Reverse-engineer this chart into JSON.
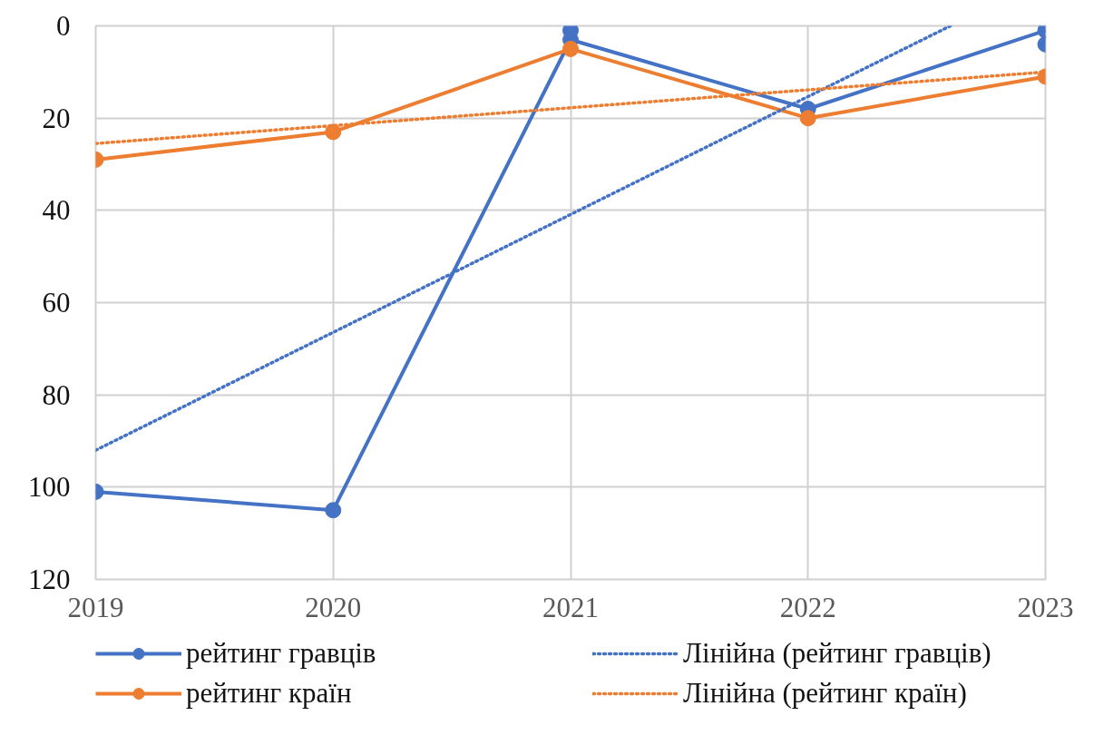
{
  "chart_data": {
    "type": "line",
    "x": [
      2019,
      2020,
      2021,
      2022,
      2023
    ],
    "xlim": [
      2019,
      2023
    ],
    "xticks": [
      2019,
      2020,
      2021,
      2022,
      2023
    ],
    "ylim": [
      120,
      0
    ],
    "yticks": [
      0,
      20,
      40,
      60,
      80,
      100,
      120
    ],
    "grid": true,
    "legend": "bottom",
    "marker": "circle",
    "line_style": "solid",
    "series": [
      {
        "name": "рейтинг гравців",
        "color": "#4472c4",
        "values": [
          101,
          105,
          3,
          18,
          1
        ]
      },
      {
        "name": "рейтинг країн",
        "color": "#ed7d31",
        "values": [
          29,
          23,
          5,
          20,
          11
        ]
      },
      {
        "name": "Лінійна (рейтинг гравців)",
        "color": "#4472c4",
        "x": [
          2019,
          2022.6
        ],
        "values": [
          92,
          0
        ],
        "marker": "none",
        "line_style": "dotted"
      },
      {
        "name": "Лінійна (рейтинг країн)",
        "color": "#ed7d31",
        "x": [
          2019,
          2023
        ],
        "values": [
          25.5,
          10
        ],
        "marker": "none",
        "line_style": "dotted"
      },
      {
        "type": "scatter",
        "color": "#4472c4",
        "values": [
          null,
          null,
          1,
          null,
          4
        ]
      }
    ]
  }
}
